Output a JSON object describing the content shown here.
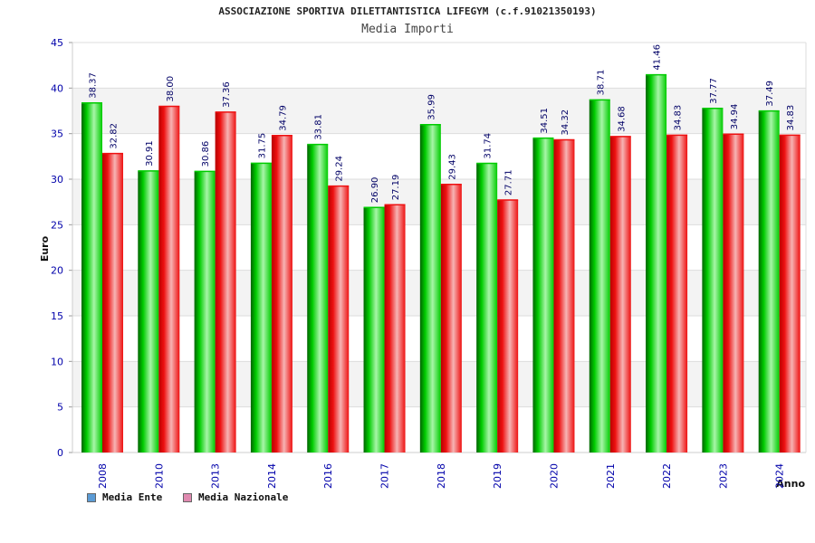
{
  "title": "ASSOCIAZIONE SPORTIVA DILETTANTISTICA LIFEGYM (c.f.91021350193)",
  "subtitle": "Media Importi",
  "chart_data": {
    "type": "bar",
    "ylabel": "Euro",
    "xlabel": "Anno",
    "ylim": [
      0,
      45
    ],
    "yticks": [
      0,
      5,
      10,
      15,
      20,
      25,
      30,
      35,
      40,
      45
    ],
    "grid": true,
    "categories": [
      "2008",
      "2010",
      "2013",
      "2014",
      "2016",
      "2017",
      "2018",
      "2019",
      "2020",
      "2021",
      "2022",
      "2023",
      "2024"
    ],
    "series": [
      {
        "name": "Media Ente",
        "values": [
          38.37,
          30.91,
          30.86,
          31.75,
          33.81,
          26.9,
          35.99,
          31.74,
          34.51,
          38.71,
          41.46,
          37.77,
          37.49
        ],
        "labels": [
          "38.37",
          "30.91",
          "30.86",
          "31.75",
          "33.81",
          "26.90",
          "35.99",
          "31.74",
          "34.51",
          "38.71",
          "41.46",
          "37.77",
          "37.49"
        ],
        "color": "#00cc00",
        "legend_color": "#5b9bd5"
      },
      {
        "name": "Media Nazionale",
        "values": [
          32.82,
          38.0,
          37.36,
          34.79,
          29.24,
          27.19,
          29.43,
          27.71,
          34.32,
          34.68,
          34.83,
          34.94,
          34.83
        ],
        "labels": [
          "32.82",
          "38.00",
          "37.36",
          "34.79",
          "29.24",
          "27.19",
          "29.43",
          "27.71",
          "34.32",
          "34.68",
          "34.83",
          "34.94",
          "34.83"
        ],
        "color": "#ee1111",
        "legend_color": "#e08ab0"
      }
    ],
    "legend_position": "bottom-left"
  }
}
